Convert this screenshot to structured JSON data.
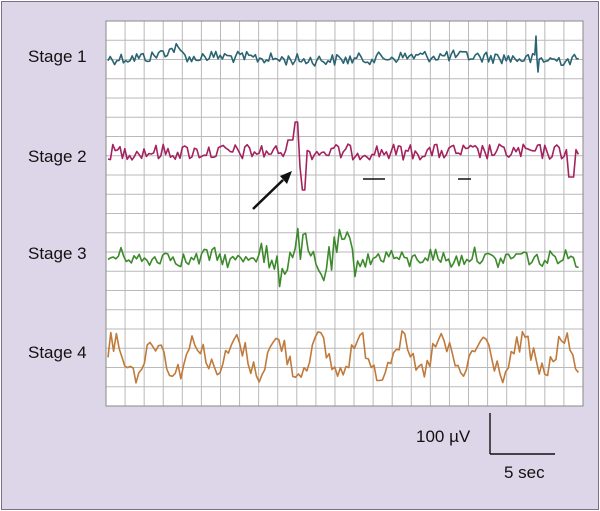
{
  "stages": [
    {
      "label": "Stage 1",
      "color": "#2a6472"
    },
    {
      "label": "Stage 2",
      "color": "#a3225f"
    },
    {
      "label": "Stage 3",
      "color": "#3d8a2c"
    },
    {
      "label": "Stage 4",
      "color": "#c07a3a"
    }
  ],
  "scale_bar": {
    "amplitude_label": "100 µV",
    "time_label": "5 sec"
  },
  "annotations": {
    "arrow_color": "#111111",
    "grid_color": "#b9b9b9",
    "marker_color": "#111111"
  }
}
